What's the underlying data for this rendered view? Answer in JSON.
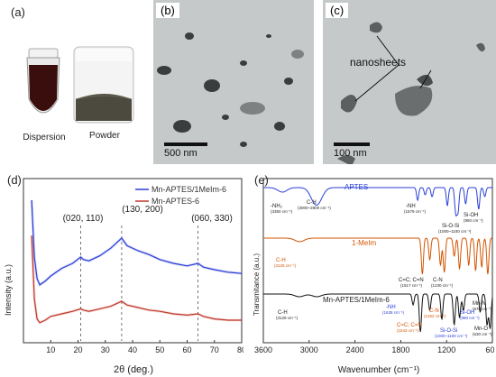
{
  "panel_a": {
    "label": "(a)",
    "captions": [
      "Dispersion",
      "Powder"
    ]
  },
  "panel_b": {
    "label": "(b)",
    "scale": "500 nm"
  },
  "panel_c": {
    "label": "(c)",
    "scale": "100 nm",
    "annotation": "nanosheets"
  },
  "panel_d": {
    "label": "(d)",
    "legend": [
      "Mn-APTES/1MeIm-6",
      "Mn-APTES-6"
    ],
    "peaks": [
      "(020, 110)",
      "(130, 200)",
      "(060, 330)"
    ]
  },
  "panel_e": {
    "label": "(e)",
    "trace_labels": [
      "APTES",
      "1-MeIm",
      "Mn-APTES/1MeIm-6"
    ],
    "annotations_aptes": [
      "-NH₂",
      "(3350 cm⁻¹)",
      "C-H",
      "(3000~2800 cm⁻¹)",
      "-NH",
      "(1579 cm⁻¹)",
      "Si-O-Si",
      "(1000~1100 cm⁻¹)",
      "Si-OH",
      "(950 cm⁻¹)"
    ],
    "annotations_meim": [
      "C-H",
      "(3125 cm⁻¹)",
      "C=C; C=N",
      "(1517 cm⁻¹)",
      "C-N",
      "(1230 cm⁻¹)"
    ],
    "annotations_mn": [
      "C-H",
      "(3129 cm⁻¹)",
      "-NH",
      "(1638 cm⁻¹)",
      "C=C; C=N",
      "(1543 cm⁻¹)",
      "C-N",
      "(1262 cm⁻¹)",
      "Si-O-Si",
      "(1000~1100 cm⁻¹)",
      "Si-OH",
      "(980 cm⁻¹)",
      "Mn-N",
      "(670 cm⁻¹)",
      "Mn-O",
      "(630 cm⁻¹)"
    ]
  },
  "chart_data": [
    {
      "type": "line",
      "xlabel": "2θ (deg.)",
      "ylabel": "Intensity (a.u.)",
      "xlim": [
        0,
        80
      ],
      "xticks": [
        10,
        20,
        30,
        40,
        50,
        60,
        70,
        80
      ],
      "series": [
        {
          "name": "Mn-APTES/1MeIm-6",
          "color": "#2a3fd6",
          "x": [
            3,
            4,
            5,
            6,
            8,
            10,
            14,
            18,
            21,
            22,
            24,
            28,
            32,
            36,
            38,
            42,
            46,
            50,
            55,
            60,
            64,
            66,
            70,
            75,
            80
          ],
          "y": [
            1.0,
            0.55,
            0.38,
            0.33,
            0.36,
            0.4,
            0.46,
            0.5,
            0.55,
            0.53,
            0.52,
            0.56,
            0.62,
            0.7,
            0.64,
            0.6,
            0.57,
            0.53,
            0.5,
            0.48,
            0.5,
            0.47,
            0.45,
            0.43,
            0.42
          ]
        },
        {
          "name": "Mn-APTES-6",
          "color": "#c0392b",
          "x": [
            3,
            4,
            5,
            6,
            8,
            10,
            14,
            18,
            21,
            22,
            24,
            28,
            32,
            36,
            38,
            42,
            46,
            50,
            55,
            60,
            64,
            66,
            70,
            75,
            80
          ],
          "y": [
            0.72,
            0.22,
            0.06,
            0.03,
            0.05,
            0.08,
            0.1,
            0.12,
            0.14,
            0.13,
            0.12,
            0.14,
            0.16,
            0.2,
            0.17,
            0.15,
            0.13,
            0.12,
            0.1,
            0.09,
            0.1,
            0.08,
            0.06,
            0.05,
            0.05
          ]
        }
      ],
      "peak_positions": [
        21,
        36,
        64
      ]
    },
    {
      "type": "line",
      "xlabel": "Wavenumber (cm⁻¹)",
      "ylabel": "Transmitance (a.u.)",
      "xlim": [
        3600,
        600
      ],
      "xticks": [
        3600,
        3000,
        2400,
        1800,
        1200,
        600
      ],
      "series": [
        {
          "name": "APTES",
          "color": "#2a3fd6"
        },
        {
          "name": "1-MeIm",
          "color": "#d35400"
        },
        {
          "name": "Mn-APTES/1MeIm-6",
          "color": "#111111"
        }
      ]
    }
  ]
}
